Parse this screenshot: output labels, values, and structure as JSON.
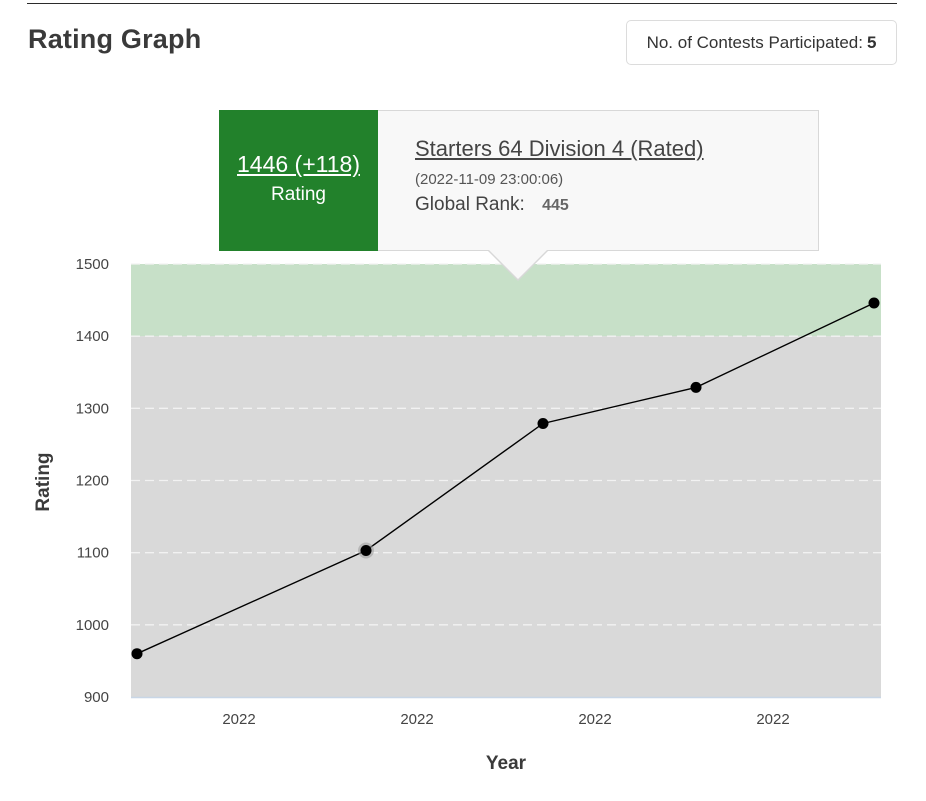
{
  "header": {
    "title": "Rating Graph",
    "contests_label": "No. of Contests Participated:",
    "contests_count": "5"
  },
  "tooltip": {
    "rating_value": "1446 (+118)",
    "rating_label": "Rating",
    "contest_name": "Starters 64 Division 4 (Rated)",
    "contest_date": "(2022-11-09 23:00:06)",
    "rank_label": "Global Rank:",
    "rank_value": "445",
    "rating_bg_color": "#22812b"
  },
  "chart_data": {
    "type": "line",
    "title": "Rating Graph",
    "xlabel": "Year",
    "ylabel": "Rating",
    "ylim": [
      900,
      1500
    ],
    "y_ticks": [
      900,
      1000,
      1100,
      1200,
      1300,
      1400,
      1500
    ],
    "x_tick_labels": [
      "2022",
      "2022",
      "2022",
      "2022"
    ],
    "grid": true,
    "bands": [
      {
        "from": 900,
        "to": 1400,
        "color": "#d9d9d9"
      },
      {
        "from": 1400,
        "to": 1600,
        "color": "#c7e0c8"
      }
    ],
    "series": [
      {
        "values": [
          960,
          1103,
          1279,
          1329,
          1446
        ],
        "color": "#000000"
      }
    ]
  }
}
